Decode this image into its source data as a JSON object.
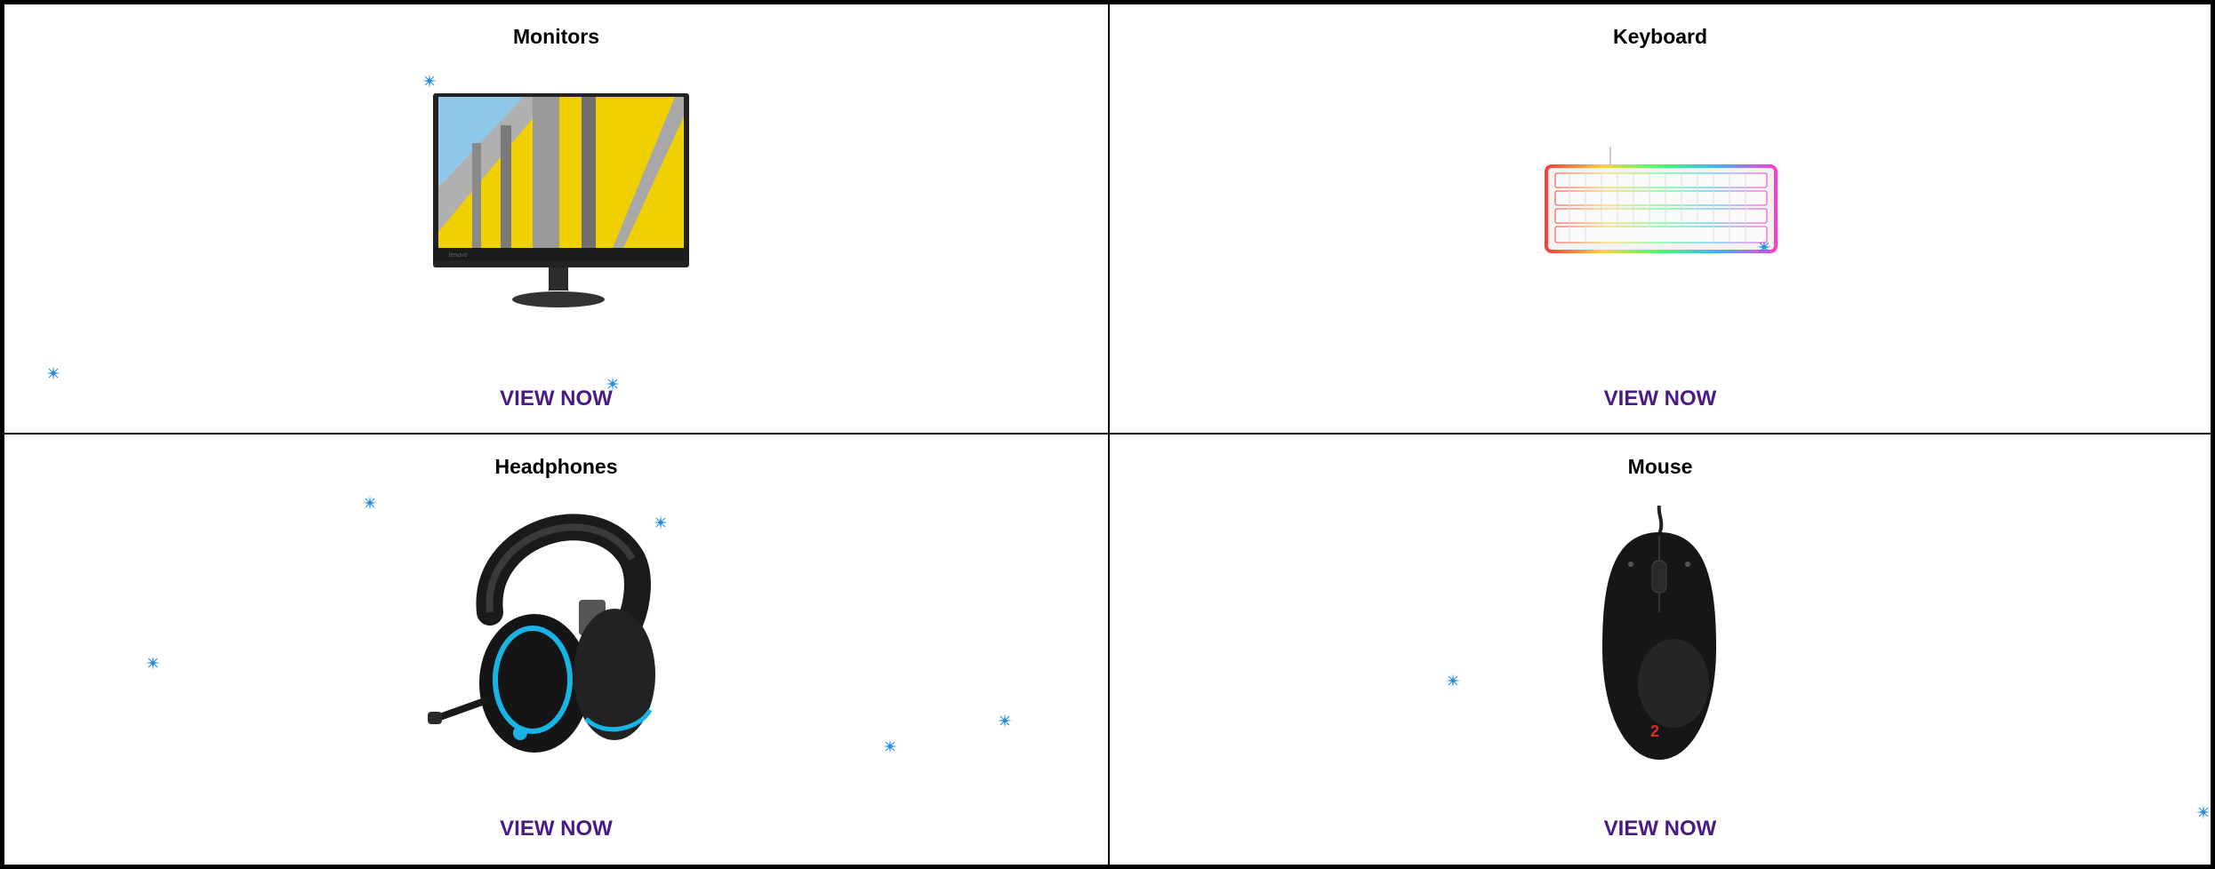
{
  "products": [
    {
      "title": "Monitors",
      "cta": "VIEW NOW",
      "image": "monitor-image"
    },
    {
      "title": "Keyboard",
      "cta": "VIEW NOW",
      "image": "keyboard-image"
    },
    {
      "title": "Headphones",
      "cta": "VIEW NOW",
      "image": "headphones-image"
    },
    {
      "title": "Mouse",
      "cta": "VIEW NOW",
      "image": "mouse-image"
    }
  ],
  "colors": {
    "cta": "#4a1a86",
    "sparkle": "#1e88e5",
    "border": "#000000"
  }
}
